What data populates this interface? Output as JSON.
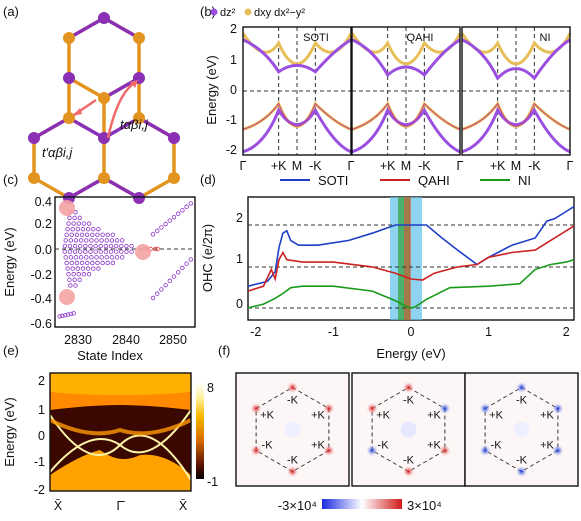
{
  "panels": {
    "a": "(a)",
    "b": "(b)",
    "c": "(c)",
    "d": "(d)",
    "e": "(e)",
    "f": "(f)"
  },
  "panel_a": {
    "hop1": "t′αβi,j",
    "hop2": "tαβi,j",
    "colors": {
      "purple": "#8b2fb5",
      "orange": "#e2941f",
      "arrow": "#f06a6a"
    }
  },
  "panel_b": {
    "legend": [
      "dz²",
      "dxy dx²−y²"
    ],
    "legend_colors": [
      "#9b4fe0",
      "#e8be58"
    ],
    "ylabel": "Energy (eV)",
    "yticks": [
      "2",
      "1",
      "0",
      "-1",
      "-2"
    ],
    "subpanels": [
      "SOTI",
      "QAHI",
      "NI"
    ],
    "xticks": [
      "Γ",
      "+K",
      "M",
      "-K",
      "Γ"
    ]
  },
  "panel_c": {
    "ylabel": "Energy (eV)",
    "xlabel": "State Index",
    "yticks": [
      "0.4",
      "0.2",
      "0.0",
      "-0.2",
      "-0.4",
      "-0.6"
    ],
    "xticks": [
      "2830",
      "2840",
      "2850"
    ]
  },
  "panel_d": {
    "legend": [
      "SOTI",
      "QAHI",
      "NI"
    ],
    "ylabel": "OHC (e/2π)",
    "xlabel": "Energy (eV)",
    "yticks": [
      "2",
      "1",
      "0"
    ],
    "xticks": [
      "-2",
      "-1",
      "0",
      "1",
      "2"
    ]
  },
  "panel_e": {
    "ylabel": "Energy (eV)",
    "yticks": [
      "2",
      "1",
      "0",
      "-1",
      "-2"
    ],
    "xticks": [
      "X̄",
      "Γ̄",
      "X̄"
    ],
    "colorbar": [
      "8",
      "-1"
    ]
  },
  "panel_f": {
    "maps": [
      {
        "labels": [
          "-K",
          "+K",
          "+K",
          "-K",
          "-K",
          "+K"
        ]
      },
      {
        "labels": [
          "-K",
          "+K",
          "+K",
          "-K",
          "-K",
          "+K"
        ]
      },
      {
        "labels": [
          "-K",
          "+K",
          "+K",
          "-K",
          "-K",
          "+K"
        ]
      }
    ],
    "colorbar_min": "-3×10⁴",
    "colorbar_max": "3×10⁴"
  },
  "chart_data": [
    {
      "type": "line",
      "title": "",
      "xlabel": "Energy (eV)",
      "ylabel": "OHC (e/2π)",
      "xlim": [
        -2.1,
        2.1
      ],
      "ylim": [
        -0.25,
        2.3
      ],
      "series": [
        {
          "name": "SOTI",
          "color": "#1f3fc6",
          "x": [
            -2.1,
            -1.85,
            -1.75,
            -1.7,
            -1.65,
            -1.6,
            -1.55,
            -1.45,
            -1.2,
            -0.8,
            -0.5,
            -0.2,
            0,
            0.2,
            0.4,
            0.6,
            0.85,
            1.0,
            1.3,
            1.6,
            1.75,
            1.85,
            2.0,
            2.1
          ],
          "y": [
            0.45,
            0.55,
            0.75,
            1.25,
            1.55,
            1.6,
            1.4,
            1.3,
            1.3,
            1.4,
            1.55,
            1.72,
            1.72,
            1.72,
            1.45,
            1.2,
            0.9,
            1.05,
            1.3,
            1.45,
            1.8,
            1.85,
            2.0,
            2.1
          ]
        },
        {
          "name": "QAHI",
          "color": "#cc2222",
          "x": [
            -2.1,
            -1.9,
            -1.8,
            -1.75,
            -1.7,
            -1.65,
            -1.6,
            -1.4,
            -1.0,
            -0.5,
            -0.2,
            0,
            0.15,
            0.3,
            0.6,
            0.85,
            1.0,
            1.3,
            1.6,
            1.8,
            2.0,
            2.1
          ],
          "y": [
            0.35,
            0.45,
            0.8,
            0.6,
            1.0,
            1.15,
            1.0,
            0.95,
            0.95,
            0.85,
            0.72,
            0.6,
            0.58,
            0.72,
            0.85,
            0.9,
            1.05,
            1.15,
            1.2,
            1.4,
            1.6,
            1.7
          ]
        },
        {
          "name": "NI",
          "color": "#1a9a1a",
          "x": [
            -2.1,
            -1.9,
            -1.75,
            -1.65,
            -1.55,
            -1.4,
            -1.0,
            -0.5,
            -0.2,
            -0.05,
            0,
            0.05,
            0.2,
            0.5,
            1.0,
            1.4,
            1.6,
            1.8,
            2.0,
            2.1
          ],
          "y": [
            0.0,
            0.08,
            0.2,
            0.3,
            0.42,
            0.45,
            0.45,
            0.35,
            0.15,
            0.02,
            0.0,
            0.02,
            0.18,
            0.42,
            0.45,
            0.5,
            0.8,
            0.9,
            0.95,
            1.0
          ]
        }
      ]
    }
  ]
}
